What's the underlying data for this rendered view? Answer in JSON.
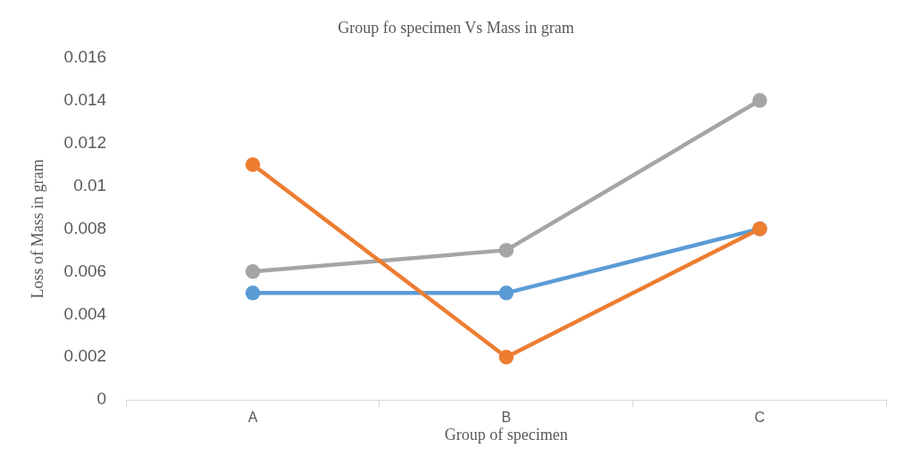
{
  "chart_data": {
    "type": "line",
    "title": "Group fo specimen Vs Mass in gram",
    "xlabel": "Group of specimen",
    "ylabel": "Loss of Mass in gram",
    "categories": [
      "A",
      "B",
      "C"
    ],
    "series": [
      {
        "color": "#5b9bd5",
        "values": [
          0.005,
          0.005,
          0.008
        ]
      },
      {
        "color": "#a5a5a5",
        "values": [
          0.006,
          0.007,
          0.014
        ]
      },
      {
        "color": "#ed7d31",
        "values": [
          0.011,
          0.002,
          0.008
        ]
      }
    ],
    "ylim": [
      0,
      0.016
    ],
    "yticks": [
      0,
      0.002,
      0.004,
      0.006,
      0.008,
      0.01,
      0.012,
      0.014,
      0.016
    ],
    "grid": false,
    "marker": "circle",
    "line_style": "solid"
  }
}
